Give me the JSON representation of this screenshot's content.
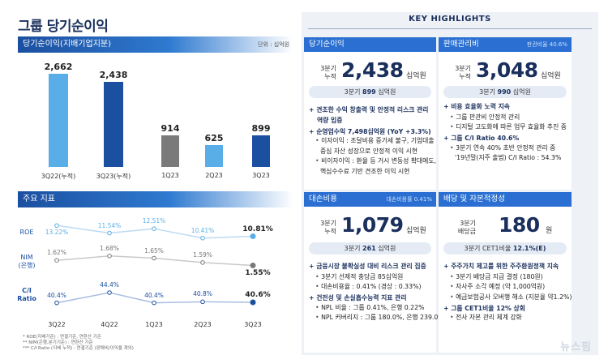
{
  "page_title": "그룹 당기순이익",
  "net_income": {
    "header": "당기순이익(지배기업지분)",
    "unit": "단위 : 십억원",
    "chart_data": {
      "type": "bar",
      "categories": [
        "3Q22(누적)",
        "3Q23(누적)",
        "1Q23",
        "2Q23",
        "3Q23"
      ],
      "values": [
        2662,
        2438,
        914,
        625,
        899
      ],
      "value_labels": [
        "2,662",
        "2,438",
        "914",
        "625",
        "899"
      ],
      "colors": [
        "#5aaee8",
        "#1b4fa0",
        "#7a7a7a",
        "#5aaee8",
        "#1b4fa0"
      ],
      "title": "",
      "xlabel": "",
      "ylabel": ""
    }
  },
  "indicators": {
    "header": "주요 지표",
    "chart_data": {
      "type": "line",
      "x": [
        "3Q22",
        "4Q22",
        "1Q23",
        "2Q23",
        "3Q23"
      ],
      "series": [
        {
          "name": "ROE",
          "values": [
            13.22,
            11.54,
            12.51,
            10.41,
            10.81
          ],
          "labels": [
            "13.22%",
            "11.54%",
            "12.51%",
            "10.41%",
            "10.81%"
          ],
          "color": "#5aaee8"
        },
        {
          "name": "NIM (은행)",
          "values": [
            1.62,
            1.68,
            1.65,
            1.59,
            1.55
          ],
          "labels": [
            "1.62%",
            "1.68%",
            "1.65%",
            "1.59%",
            "1.55%"
          ],
          "color": "#7a7a7a"
        },
        {
          "name": "C/I Ratio",
          "values": [
            40.4,
            44.4,
            40.4,
            40.8,
            40.6
          ],
          "labels": [
            "40.4%",
            "44.4%",
            "40.4%",
            "40.8%",
            "40.6%"
          ],
          "color": "#1b4fa0"
        }
      ]
    },
    "row_labels": {
      "roe": "ROE",
      "nim_1": "NIM",
      "nim_2": "(은행)",
      "ci_1": "C/I",
      "ci_2": "Ratio"
    },
    "footnotes": [
      "* ROE(지배기준) : 연결기준, 연환산 기준",
      "** NIM(은행,분기기준) : 연환산 기준",
      "*** C/I Ratio (지배 누적) : 연결기준 (판매비/이익율 계의)"
    ]
  },
  "highlights": {
    "title": "KEY HIGHLIGHTS",
    "net_income": {
      "header": "당기순이익",
      "label_1": "3분기",
      "label_2": "누적",
      "value": "2,438",
      "unit": "십억원",
      "pill_prefix": "3분기",
      "pill_value": "899",
      "pill_suffix": "십억원",
      "bullets": [
        {
          "type": "main",
          "text": "견조한 수익 창출력 및 안정적 리스크 관리"
        },
        {
          "type": "cont",
          "text": "역량 입증"
        },
        {
          "type": "main",
          "text": "순영업수익 7,498십억원 (YoY +3.3%)"
        },
        {
          "type": "sub",
          "text": "이자이익 : 조달비용 증가세 불구, 기업대출"
        },
        {
          "type": "cont2",
          "text": "중심 자산 성장으로 안정적 이익 시현"
        },
        {
          "type": "sub",
          "text": "비이자이익 : 환율 등 거시 변동성 확대에도,"
        },
        {
          "type": "cont2",
          "text": "핵심수수료 기반 견조한 이익 시현"
        }
      ]
    },
    "sga": {
      "header": "판매관리비",
      "note": "판관비율 40.6%",
      "label_1": "3분기",
      "label_2": "누적",
      "value": "3,048",
      "unit": "십억원",
      "pill_prefix": "3분기",
      "pill_value": "990",
      "pill_suffix": "십억원",
      "bullets": [
        {
          "type": "main",
          "text": "비용 효율화 노력 지속"
        },
        {
          "type": "sub",
          "text": "그룹 판관비 안정적 관리"
        },
        {
          "type": "sub",
          "text": "디지털 고도화에 따른 업무 효율화 추진 중"
        },
        {
          "type": "main",
          "text": "그룹 C/I Ratio 40.6%"
        },
        {
          "type": "sub",
          "text": "3분기 연속 40% 초반 안정적 관리 중"
        },
        {
          "type": "cont2",
          "text": "'19년말(지주 출범) C/I Ratio : 54.3%"
        }
      ]
    },
    "credit_cost": {
      "header": "대손비용",
      "note": "대손비용률 0.41%",
      "label_1": "3분기",
      "label_2": "누적",
      "value": "1,079",
      "unit": "십억원",
      "pill_prefix": "3분기",
      "pill_value": "261",
      "pill_suffix": "십억원",
      "bullets": [
        {
          "type": "main",
          "text": "금융시장 불확실성 대비 리스크 관리 집중"
        },
        {
          "type": "sub",
          "text": "3분기 선제적 충당금 85십억원"
        },
        {
          "type": "sub",
          "text": "대손비용율 : 0.41% (경상 : 0.33%)"
        },
        {
          "type": "main",
          "text": "건전성 및 손실흡수능력 지표 관리"
        },
        {
          "type": "sub",
          "text": "NPL 비율 : 그룹 0.41%, 은행 0.22%"
        },
        {
          "type": "sub",
          "text": "NPL 커버리지 : 그룹 180.0%, 은행 239.0%"
        }
      ]
    },
    "dividend": {
      "header": "배당 및 자본적정성",
      "label_1": "3분기",
      "label_2": "배당금",
      "value": "180",
      "unit": "원",
      "pill_prefix": "3분기 CET1비율",
      "pill_value": "12.1%(E)",
      "pill_suffix": "",
      "bullets": [
        {
          "type": "main",
          "text": "주주가치 제고를 위한 주주환원정책 지속"
        },
        {
          "type": "sub",
          "text": "3분기 배당금 지급 결정 (180원)"
        },
        {
          "type": "sub",
          "text": "자사주 소각 예정 (약 1,000억원)"
        },
        {
          "type": "sub",
          "text": "예금보험공사 오버행 해소 (지분율 약1.2%)"
        },
        {
          "type": "main",
          "text": "그룹 CET1비율 12% 상회"
        },
        {
          "type": "sub",
          "text": "전사 자본 관리 체계 강화"
        }
      ]
    },
    "watermark": "뉴스핌"
  }
}
